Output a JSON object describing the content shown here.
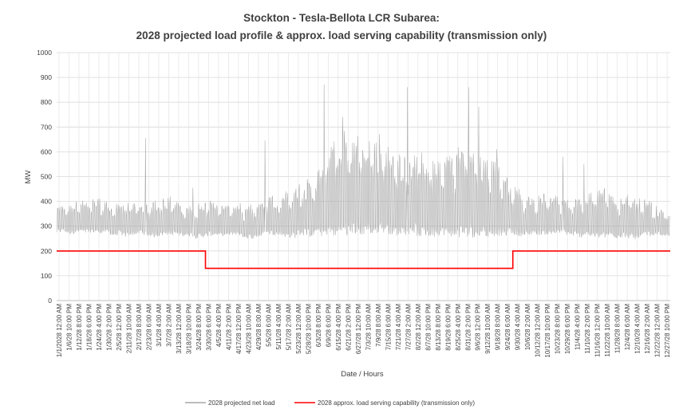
{
  "chart_data": {
    "type": "line",
    "title": "Stockton - Tesla-Bellota LCR Subarea:",
    "subtitle": "2028 projected load profile & approx. load serving capability (transmission only)",
    "xlabel": "Date / Hours",
    "ylabel": "MW",
    "ylim": [
      0,
      1000
    ],
    "yticks": [
      0,
      100,
      200,
      300,
      400,
      500,
      600,
      700,
      800,
      900,
      1000
    ],
    "grid": true,
    "legend_position": "bottom",
    "x_tick_labels": [
      "1/1/2028 12:00 AM",
      "1/6/28 10:00 PM",
      "1/12/28 8:00 PM",
      "1/18/28 6:00 PM",
      "1/24/28 4:00 PM",
      "1/30/28 2:00 PM",
      "2/5/28 12:00 PM",
      "2/11/28 10:00 AM",
      "2/17/28 8:00 AM",
      "2/23/28 6:00 AM",
      "3/1/28 4:00 AM",
      "3/7/28 2:00 AM",
      "3/13/28 12:00 AM",
      "3/18/28 10:00 PM",
      "3/24/28 8:00 PM",
      "3/30/28 6:00 PM",
      "4/5/28 4:00 PM",
      "4/11/28 2:00 PM",
      "4/17/28 12:00 PM",
      "4/23/28 10:00 AM",
      "4/29/28 8:00 AM",
      "5/5/28 6:00 AM",
      "5/11/28 4:00 AM",
      "5/17/28 2:00 AM",
      "5/23/28 12:00 AM",
      "5/28/28 10:00 PM",
      "6/3/28 8:00 PM",
      "6/9/28 6:00 PM",
      "6/15/28 4:00 PM",
      "6/21/28 2:00 PM",
      "6/27/28 12:00 PM",
      "7/3/28 10:00 AM",
      "7/9/28 8:00 AM",
      "7/15/28 6:00 AM",
      "7/21/28 4:00 AM",
      "7/27/28 2:00 AM",
      "8/2/28 12:00 AM",
      "8/7/28 10:00 PM",
      "8/13/28 8:00 PM",
      "8/19/28 6:00 PM",
      "8/25/28 4:00 PM",
      "8/31/28 2:00 PM",
      "9/6/28 12:00 PM",
      "9/12/28 10:00 AM",
      "9/18/28 8:00 AM",
      "9/24/28 6:00 AM",
      "9/30/28 4:00 AM",
      "10/6/28 2:00 AM",
      "10/12/28 12:00 AM",
      "10/17/28 10:00 PM",
      "10/23/28 8:00 PM",
      "10/29/28 6:00 PM",
      "11/4/28 4:00 PM",
      "11/10/28 2:00 PM",
      "11/16/28 12:00 PM",
      "11/22/28 10:00 AM",
      "11/28/28 8:00 AM",
      "12/4/28 6:00 AM",
      "12/10/28 4:00 AM",
      "12/16/28 2:00 AM",
      "12/22/28 12:00 AM",
      "12/27/28 10:00 PM"
    ],
    "series": [
      {
        "name": "2028 projected net load",
        "color": "#a6a6a6",
        "x_unit": "hour of year (0 = 1/1/2028 12:00 AM)",
        "envelope_x": [
          0,
          100,
          200,
          300,
          400,
          500,
          600,
          700,
          800,
          900,
          1000,
          1100,
          1200,
          1300,
          1400,
          1500,
          1600,
          1700,
          1800,
          1900,
          2000,
          2100,
          2200,
          2300,
          2400,
          2500,
          2600,
          2700,
          2800,
          2900,
          3000,
          3100,
          3200,
          3300,
          3400,
          3500,
          3600,
          3700,
          3800,
          3900,
          4000,
          4100,
          4200,
          4300,
          4400,
          4500,
          4600,
          4700,
          4800,
          4900,
          5000,
          5100,
          5200,
          5300,
          5400,
          5500,
          5600,
          5700,
          5800,
          5900,
          6000,
          6100,
          6200,
          6300,
          6400,
          6500,
          6600,
          6700,
          6800,
          6900,
          7000,
          7100,
          7200,
          7300,
          7400,
          7500,
          7600,
          7700,
          7800,
          7900,
          8000,
          8100,
          8200,
          8300,
          8400,
          8500,
          8600,
          8700,
          8783
        ],
        "envelope_low": [
          270,
          280,
          265,
          275,
          270,
          275,
          270,
          275,
          260,
          265,
          255,
          265,
          270,
          260,
          255,
          260,
          265,
          265,
          260,
          260,
          250,
          255,
          260,
          265,
          260,
          265,
          265,
          250,
          250,
          255,
          265,
          265,
          260,
          255,
          250,
          265,
          255,
          260,
          260,
          265,
          255,
          265,
          255,
          260,
          265,
          260,
          270,
          275,
          265,
          260,
          265,
          270,
          255,
          260,
          255,
          265,
          260,
          255,
          250,
          260,
          250,
          265,
          250,
          265,
          255,
          270,
          260,
          260,
          265,
          265,
          265,
          265,
          270,
          265,
          260,
          255,
          260,
          255,
          250,
          255,
          250,
          255,
          250,
          245,
          260,
          260,
          265,
          260,
          255
        ],
        "envelope_high": [
          385,
          390,
          395,
          410,
          400,
          410,
          420,
          400,
          395,
          390,
          410,
          400,
          400,
          395,
          410,
          420,
          425,
          410,
          390,
          380,
          395,
          400,
          410,
          385,
          380,
          390,
          400,
          385,
          395,
          410,
          420,
          430,
          430,
          450,
          460,
          480,
          490,
          500,
          560,
          630,
          660,
          700,
          690,
          680,
          660,
          650,
          640,
          640,
          620,
          600,
          590,
          600,
          610,
          560,
          570,
          580,
          590,
          600,
          640,
          670,
          600,
          590,
          580,
          560,
          520,
          480,
          460,
          420,
          420,
          430,
          440,
          440,
          430,
          420,
          410,
          420,
          430,
          440,
          460,
          450,
          440,
          420,
          430,
          420,
          410,
          400,
          380,
          360,
          345
        ],
        "peaks": [
          {
            "x": 1270,
            "y": 655
          },
          {
            "x": 2980,
            "y": 645
          },
          {
            "x": 3830,
            "y": 870
          },
          {
            "x": 4090,
            "y": 740
          },
          {
            "x": 4620,
            "y": 670
          },
          {
            "x": 5020,
            "y": 860
          },
          {
            "x": 5900,
            "y": 860
          },
          {
            "x": 6040,
            "y": 780
          },
          {
            "x": 6300,
            "y": 610
          },
          {
            "x": 1950,
            "y": 455
          },
          {
            "x": 7250,
            "y": 580
          },
          {
            "x": 7550,
            "y": 550
          }
        ]
      },
      {
        "name": "2028 approx. load serving  capability (transmission only)",
        "color": "#ff0000",
        "x": [
          0,
          2130,
          2130,
          6530,
          6530,
          8783
        ],
        "y": [
          200,
          200,
          130,
          130,
          200,
          200
        ]
      }
    ]
  }
}
